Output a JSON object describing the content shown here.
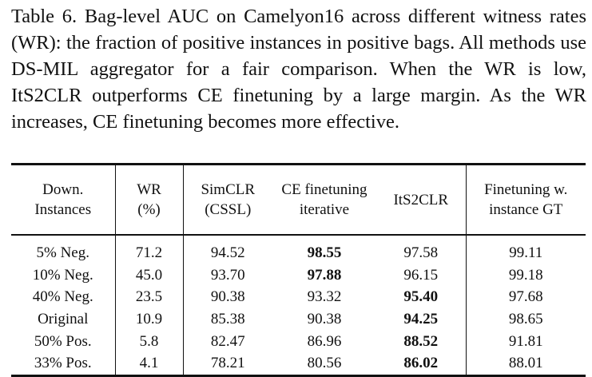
{
  "caption": "Table 6. Bag-level AUC on Camelyon16 across different witness rates (WR): the fraction of positive instances in positive bags. All methods use DS-MIL aggregator for a fair comparison. When the WR is low, ItS2CLR outperforms CE finetuning by a large margin. As the WR increases, CE finetuning becomes more effective.",
  "table": {
    "headers": [
      [
        "Down.",
        "Instances"
      ],
      [
        "WR",
        "(%)"
      ],
      [
        "SimCLR",
        "(CSSL)"
      ],
      [
        "CE finetuning",
        "iterative"
      ],
      [
        "ItS2CLR",
        ""
      ],
      [
        "Finetuning w.",
        "instance GT"
      ]
    ],
    "rows": [
      {
        "cells": [
          "5% Neg.",
          "71.2",
          "94.52",
          "98.55",
          "97.58",
          "99.11"
        ],
        "bold_index": 3
      },
      {
        "cells": [
          "10% Neg.",
          "45.0",
          "93.70",
          "97.88",
          "96.15",
          "99.18"
        ],
        "bold_index": 3
      },
      {
        "cells": [
          "40% Neg.",
          "23.5",
          "90.38",
          "93.32",
          "95.40",
          "97.68"
        ],
        "bold_index": 4
      },
      {
        "cells": [
          "Original",
          "10.9",
          "85.38",
          "90.38",
          "94.25",
          "98.65"
        ],
        "bold_index": 4
      },
      {
        "cells": [
          "50% Pos.",
          "5.8",
          "82.47",
          "86.96",
          "88.52",
          "91.81"
        ],
        "bold_index": 4
      },
      {
        "cells": [
          "33% Pos.",
          "4.1",
          "78.21",
          "80.56",
          "86.02",
          "88.01"
        ],
        "bold_index": 4
      }
    ]
  }
}
